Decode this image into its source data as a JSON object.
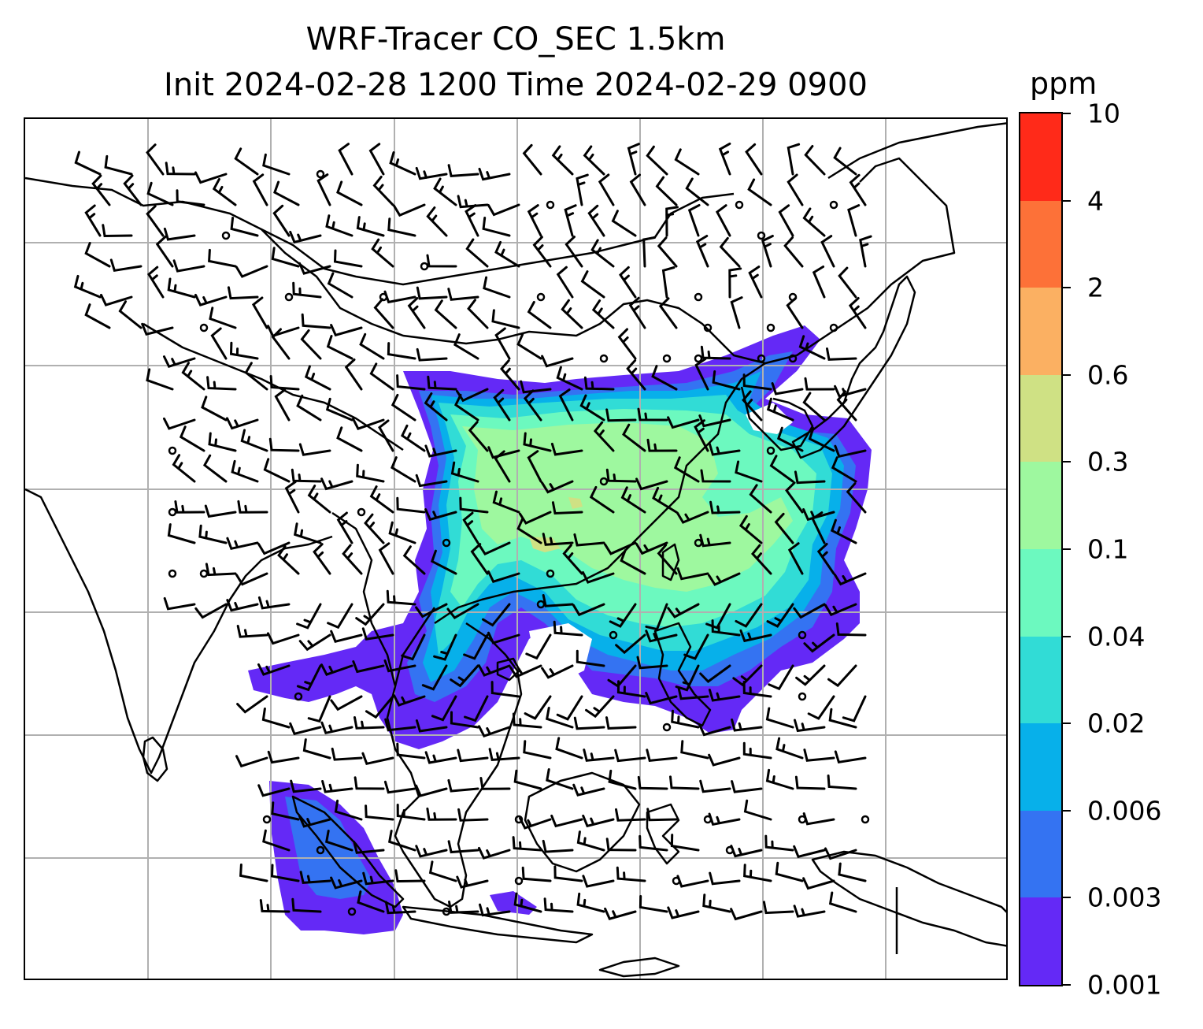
{
  "title": {
    "line1": "WRF-Tracer CO_SEC 1.5km",
    "line2": "Init 2024-02-28 1200 Time 2024-02-29 0900"
  },
  "colorbar": {
    "unit": "ppm",
    "ticks": [
      "0.001",
      "0.003",
      "0.006",
      "0.02",
      "0.04",
      "0.1",
      "0.3",
      "0.6",
      "2",
      "4",
      "10"
    ],
    "colors": [
      "#6429f6",
      "#3473f2",
      "#07b0ea",
      "#31dcd6",
      "#6cf9bf",
      "#9ef89f",
      "#cfe184",
      "#fbb062",
      "#fd7138",
      "#ff2a19"
    ]
  },
  "map": {
    "gridlines": true,
    "wind_barbs": true,
    "tracer_levels_present": [
      "0.001",
      "0.003",
      "0.006",
      "0.02",
      "0.04",
      "0.1",
      "0.3"
    ]
  }
}
